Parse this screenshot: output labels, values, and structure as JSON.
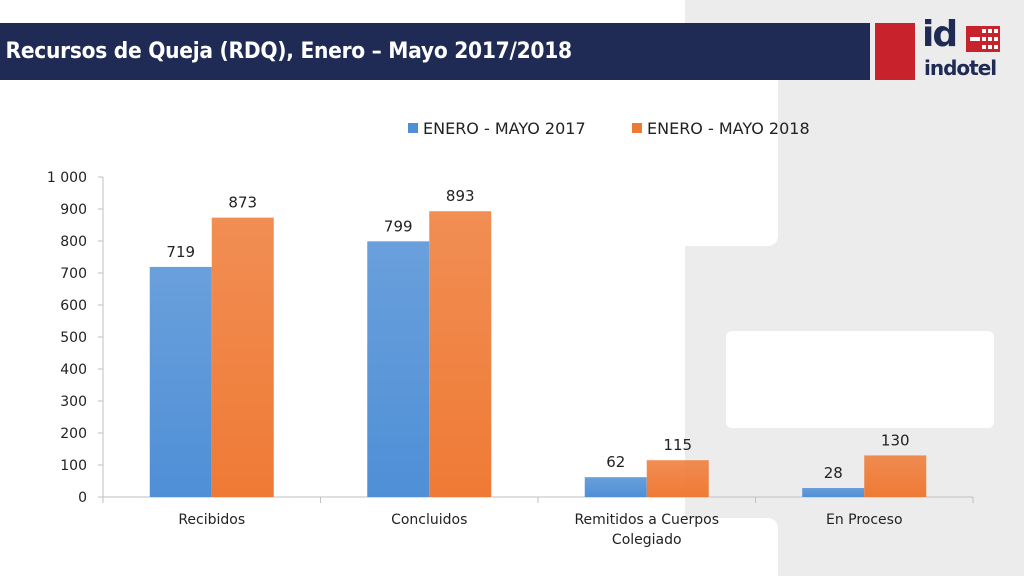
{
  "header": {
    "title": "Recursos de Queja (RDQ), Enero – Mayo 2017/2018"
  },
  "logo": {
    "mark": "id",
    "wordmark": "indotel"
  },
  "colors": {
    "title_bar": "#1f2b55",
    "accent_red": "#c8232c",
    "series_2017": "#4f8fd6",
    "series_2018": "#ef7a35"
  },
  "chart_data": {
    "type": "bar",
    "title": "",
    "xlabel": "",
    "ylabel": "",
    "ylim": [
      0,
      1000
    ],
    "yticks": [
      0,
      100,
      200,
      300,
      400,
      500,
      600,
      700,
      800,
      900,
      1000
    ],
    "ytick_labels": [
      "0",
      "100",
      "200",
      "300",
      "400",
      "500",
      "600",
      "700",
      "800",
      "900",
      "1 000"
    ],
    "categories": [
      "Recibidos",
      "Concluidos",
      "Remitidos a Cuerpos Colegiado",
      "En Proceso"
    ],
    "category_lines": [
      [
        "Recibidos"
      ],
      [
        "Concluidos"
      ],
      [
        "Remitidos a Cuerpos",
        "Colegiado"
      ],
      [
        "En Proceso"
      ]
    ],
    "series": [
      {
        "name": "ENERO - MAYO 2017",
        "color": "#4f8fd6",
        "values": [
          719,
          799,
          62,
          28
        ]
      },
      {
        "name": "ENERO - MAYO 2018",
        "color": "#ef7a35",
        "values": [
          873,
          893,
          115,
          130
        ]
      }
    ],
    "data_labels": true,
    "legend": "top-center",
    "grid": false
  }
}
